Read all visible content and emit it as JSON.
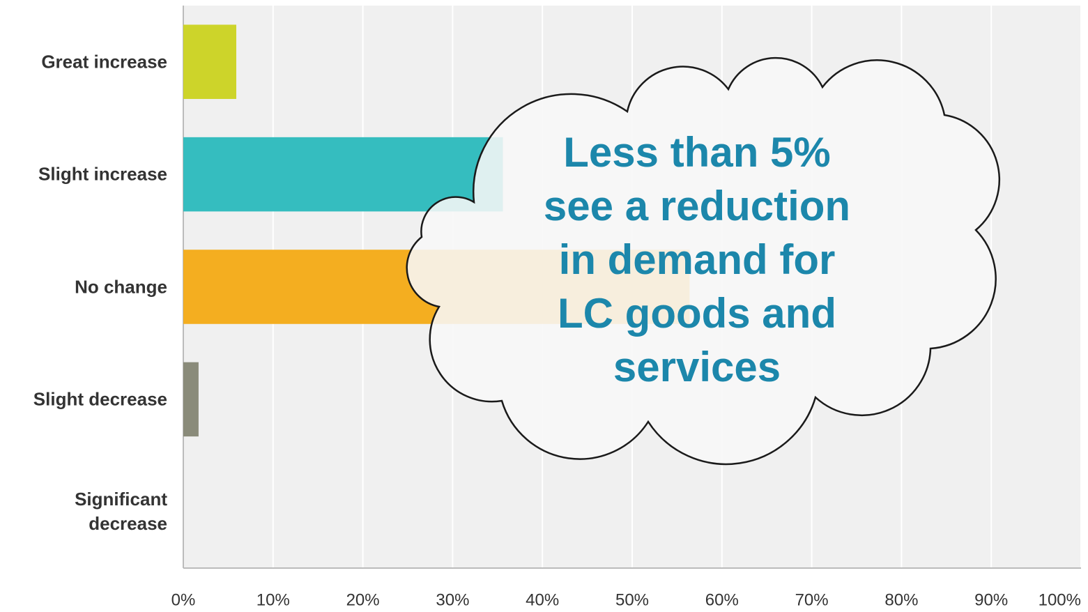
{
  "chart_data": {
    "type": "hbar",
    "categories": [
      "Great increase",
      "Slight increase",
      "No change",
      "Slight decrease",
      "Significant decrease"
    ],
    "values": [
      5.9,
      35.6,
      56.4,
      1.7,
      0
    ],
    "colors": [
      "#cdd42a",
      "#35bdbf",
      "#f4ae20",
      "#8a8b7a",
      "#8a8b7a"
    ],
    "xlim": [
      0,
      100
    ],
    "xticks": [
      {
        "value": 0,
        "label": "0%"
      },
      {
        "value": 10,
        "label": "10%"
      },
      {
        "value": 20,
        "label": "20%"
      },
      {
        "value": 30,
        "label": "30%"
      },
      {
        "value": 40,
        "label": "40%"
      },
      {
        "value": 50,
        "label": "50%"
      },
      {
        "value": 60,
        "label": "60%"
      },
      {
        "value": 70,
        "label": "70%"
      },
      {
        "value": 80,
        "label": "80%"
      },
      {
        "value": 90,
        "label": "90%"
      },
      {
        "value": 100,
        "label": "100%"
      }
    ],
    "grid": true,
    "annotation": [
      "Less than 5%",
      "see a reduction",
      "in demand for",
      "LC goods and",
      "services"
    ]
  }
}
